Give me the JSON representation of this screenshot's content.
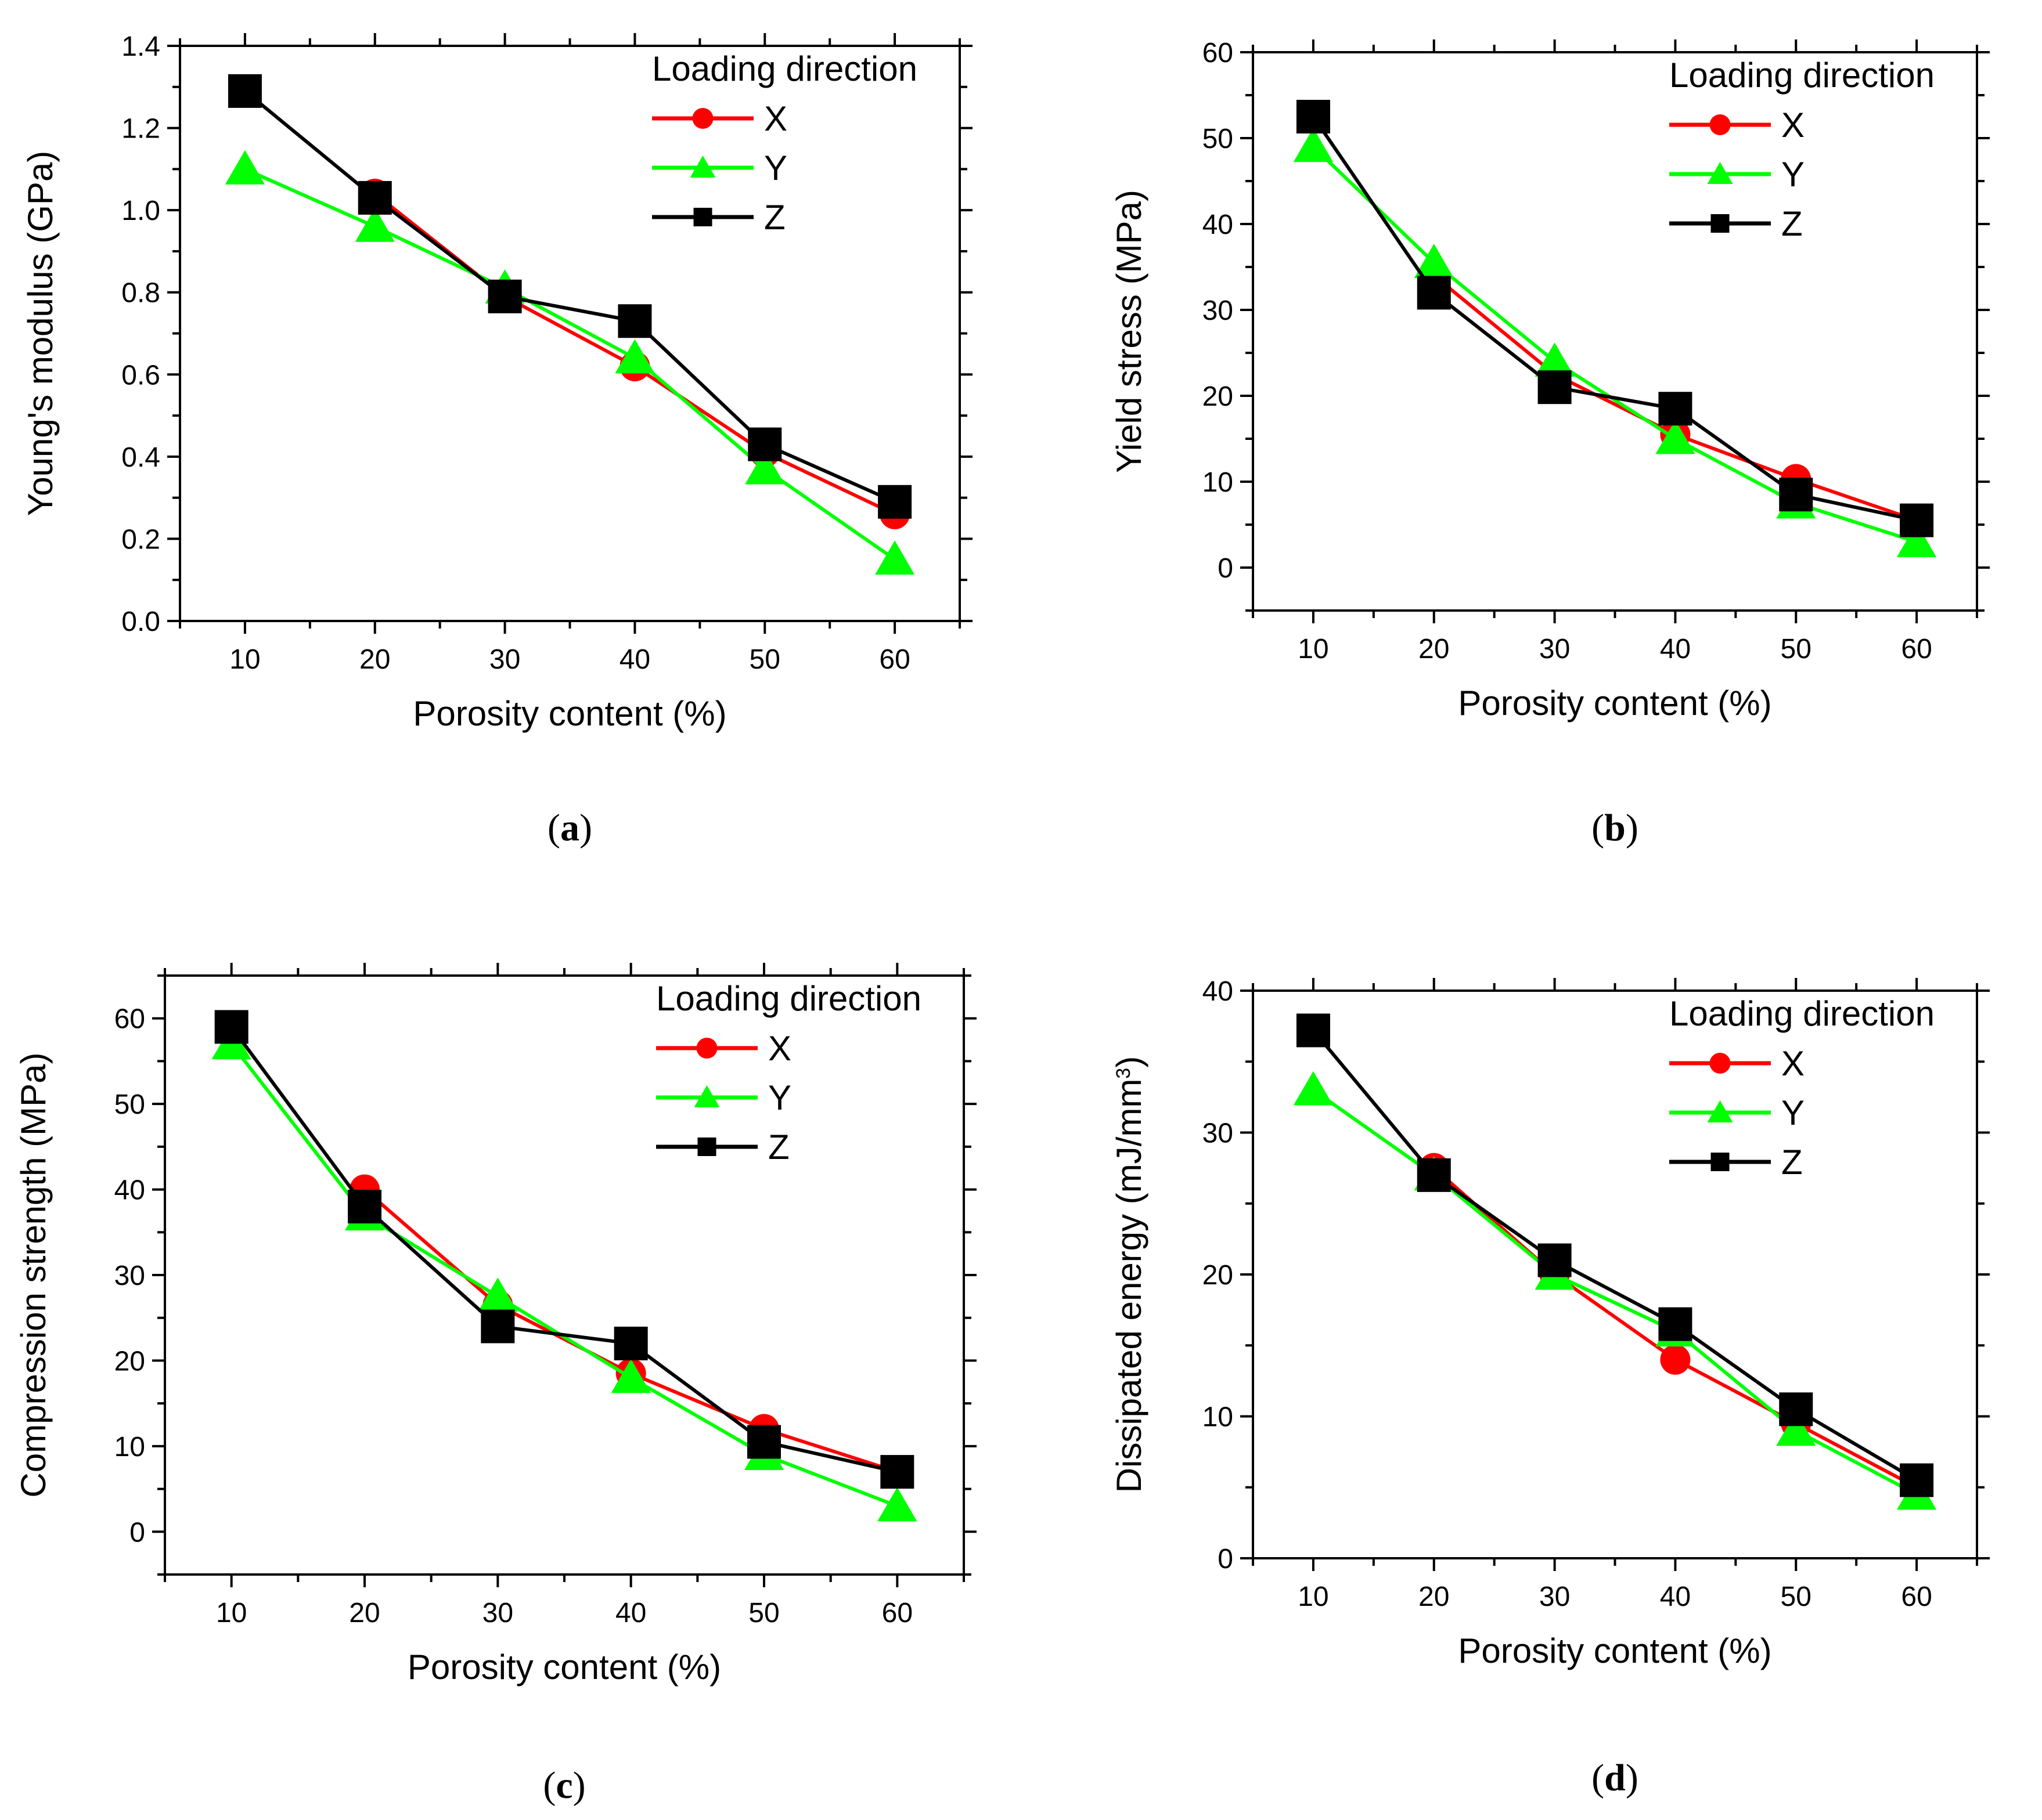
{
  "chart_data": [
    {
      "type": "line",
      "panel_label": "(a)",
      "xlabel": "Porosity content (%)",
      "ylabel": "Young's modulus (GPa)",
      "xlim": [
        5,
        65
      ],
      "ylim": [
        0.0,
        1.4
      ],
      "x_ticks": [
        10,
        20,
        30,
        40,
        50,
        60
      ],
      "x_tick_labels": [
        "10",
        "20",
        "30",
        "40",
        "50",
        "60"
      ],
      "y_ticks": [
        0,
        0.2,
        0.4,
        0.6,
        0.8,
        1.0,
        1.2,
        1.4
      ],
      "y_tick_labels": [
        "0.0",
        "0.2",
        "0.4",
        "0.6",
        "0.8",
        "1.0",
        "1.2",
        "1.4"
      ],
      "x": [
        10,
        20,
        30,
        40,
        50,
        60
      ],
      "legend_title": "Loading direction",
      "legend_position": "top-right",
      "grid": false,
      "series": [
        {
          "name": "X",
          "color": "#ff0000",
          "marker": "circle",
          "values": [
            null,
            1.04,
            0.79,
            0.62,
            0.41,
            0.26
          ]
        },
        {
          "name": "Y",
          "color": "#00ff00",
          "marker": "triangle",
          "values": [
            1.1,
            0.96,
            0.81,
            0.64,
            0.37,
            0.15
          ]
        },
        {
          "name": "Z",
          "color": "#000000",
          "marker": "square",
          "values": [
            1.29,
            1.03,
            0.79,
            0.73,
            0.43,
            0.29
          ]
        }
      ]
    },
    {
      "type": "line",
      "panel_label": "(b)",
      "xlabel": "Porosity content (%)",
      "ylabel": "Yield stress  (MPa)",
      "xlim": [
        5,
        65
      ],
      "ylim": [
        -5,
        60
      ],
      "x_ticks": [
        10,
        20,
        30,
        40,
        50,
        60
      ],
      "x_tick_labels": [
        "10",
        "20",
        "30",
        "40",
        "50",
        "60"
      ],
      "y_ticks": [
        0,
        10,
        20,
        30,
        40,
        50,
        60
      ],
      "y_tick_labels": [
        "0",
        "10",
        "20",
        "30",
        "40",
        "50",
        "60"
      ],
      "x": [
        10,
        20,
        30,
        40,
        50,
        60
      ],
      "legend_title": "Loading direction",
      "legend_position": "top-right",
      "grid": false,
      "series": [
        {
          "name": "X",
          "color": "#ff0000",
          "marker": "circle",
          "values": [
            null,
            34,
            22.5,
            15.5,
            10.3,
            5.5
          ]
        },
        {
          "name": "Y",
          "color": "#00ff00",
          "marker": "triangle",
          "values": [
            49,
            35.5,
            24,
            15,
            7.5,
            3
          ]
        },
        {
          "name": "Z",
          "color": "#000000",
          "marker": "square",
          "values": [
            52.5,
            32,
            21,
            18.5,
            8.5,
            5.5
          ]
        }
      ]
    },
    {
      "type": "line",
      "panel_label": "(c)",
      "xlabel": "Porosity content (%)",
      "ylabel": "Compression strength (MPa)",
      "xlim": [
        5,
        65
      ],
      "ylim": [
        -5,
        65
      ],
      "x_ticks": [
        10,
        20,
        30,
        40,
        50,
        60
      ],
      "x_tick_labels": [
        "10",
        "20",
        "30",
        "40",
        "50",
        "60"
      ],
      "y_ticks": [
        0,
        10,
        20,
        30,
        40,
        50,
        60
      ],
      "y_tick_labels": [
        "0",
        "10",
        "20",
        "30",
        "40",
        "50",
        "60"
      ],
      "x": [
        10,
        20,
        30,
        40,
        50,
        60
      ],
      "legend_title": "Loading direction",
      "legend_position": "top-right",
      "grid": false,
      "series": [
        {
          "name": "X",
          "color": "#ff0000",
          "marker": "circle",
          "values": [
            null,
            40,
            26.5,
            18.5,
            12,
            7
          ]
        },
        {
          "name": "Y",
          "color": "#00ff00",
          "marker": "triangle",
          "values": [
            57,
            37,
            27.5,
            18,
            9,
            3
          ]
        },
        {
          "name": "Z",
          "color": "#000000",
          "marker": "square",
          "values": [
            59,
            38,
            24,
            22,
            10.5,
            7
          ]
        }
      ]
    },
    {
      "type": "line",
      "panel_label": "(d)",
      "xlabel": "Porosity content (%)",
      "ylabel": "Dissipated  energy  (mJ/mm",
      "ylabel_sup": "3",
      "ylabel_end": ")",
      "xlim": [
        5,
        65
      ],
      "ylim": [
        0,
        40
      ],
      "x_ticks": [
        10,
        20,
        30,
        40,
        50,
        60
      ],
      "x_tick_labels": [
        "10",
        "20",
        "30",
        "40",
        "50",
        "60"
      ],
      "y_ticks": [
        0,
        10,
        20,
        30,
        40
      ],
      "y_tick_labels": [
        "0",
        "10",
        "20",
        "30",
        "40"
      ],
      "x": [
        10,
        20,
        30,
        40,
        50,
        60
      ],
      "legend_title": "Loading direction",
      "legend_position": "top-right",
      "grid": false,
      "series": [
        {
          "name": "X",
          "color": "#ff0000",
          "marker": "circle",
          "values": [
            null,
            27.5,
            20,
            14,
            9.5,
            5
          ]
        },
        {
          "name": "Y",
          "color": "#00ff00",
          "marker": "triangle",
          "values": [
            33,
            27,
            20,
            16,
            9,
            4.5
          ]
        },
        {
          "name": "Z",
          "color": "#000000",
          "marker": "square",
          "values": [
            37.2,
            27,
            21,
            16.5,
            10.5,
            5.5
          ]
        }
      ]
    }
  ]
}
